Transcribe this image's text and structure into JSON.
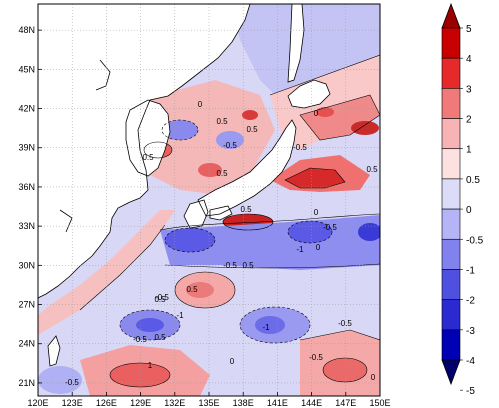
{
  "map": {
    "lat_labels": [
      "48N",
      "45N",
      "42N",
      "39N",
      "36N",
      "33N",
      "30N",
      "27N",
      "24N",
      "21N"
    ],
    "lon_labels": [
      "120E",
      "123E",
      "126E",
      "129E",
      "132E",
      "135E",
      "138E",
      "141E",
      "144E",
      "147E",
      "150E"
    ],
    "lat_range": [
      20,
      50
    ],
    "lon_range": [
      120,
      150
    ],
    "projection": "lat-lon",
    "grid_lines": "dotted"
  },
  "colorbar": {
    "levels": [
      "5",
      "4",
      "3",
      "2",
      "1",
      "0.5",
      "0",
      "-0.5",
      "-1",
      "-2",
      "-3",
      "-4",
      "-5"
    ],
    "colors": [
      "#9a0000",
      "#c80000",
      "#e62a2a",
      "#f07a7a",
      "#f8b4b4",
      "#fde0e0",
      "#dcdcf8",
      "#b4b4f6",
      "#8282ee",
      "#5050e0",
      "#2a2ad0",
      "#0000b4",
      "#00006a"
    ],
    "extends": "both"
  },
  "contour_labels": [
    {
      "text": "0.5"
    },
    {
      "text": "0"
    },
    {
      "text": "0.5"
    },
    {
      "text": "-0.5"
    },
    {
      "text": "0.5"
    },
    {
      "text": "0"
    },
    {
      "text": "-0.5"
    },
    {
      "text": "0"
    },
    {
      "text": "-0.5"
    },
    {
      "text": "0.5"
    },
    {
      "text": "-1"
    },
    {
      "text": "0"
    },
    {
      "text": "-0.5"
    },
    {
      "text": "0.5"
    },
    {
      "text": "0.5"
    },
    {
      "text": "-0.5"
    },
    {
      "text": "-1"
    },
    {
      "text": "0.5"
    },
    {
      "text": "-0.5"
    },
    {
      "text": "-0.5"
    },
    {
      "text": "0"
    },
    {
      "text": "1"
    },
    {
      "text": "-0.5"
    },
    {
      "text": "0"
    },
    {
      "text": "-0.5"
    },
    {
      "text": "0.5"
    },
    {
      "text": "0.5"
    },
    {
      "text": "-1"
    },
    {
      "text": "0.5"
    }
  ]
}
